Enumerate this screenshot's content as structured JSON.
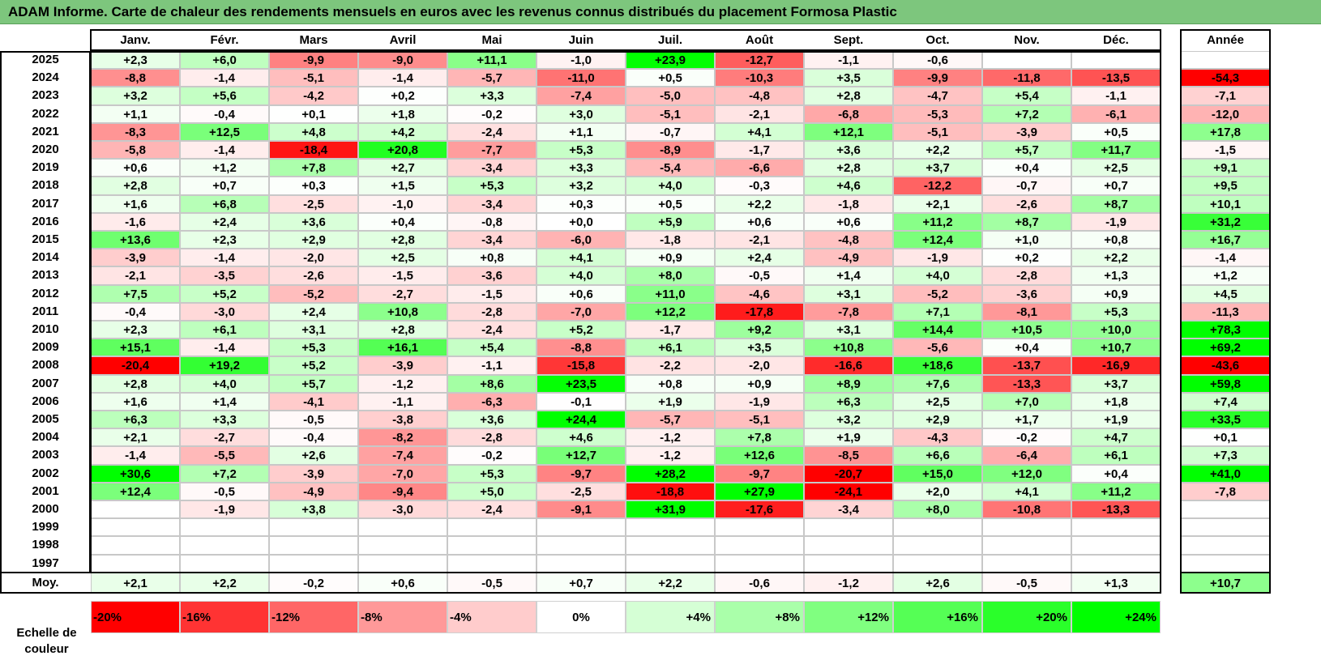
{
  "title": "ADAM Informe. Carte de chaleur des rendements mensuels en euros avec les revenus connus distribués du placement Formosa Plastic",
  "colors": {
    "title_bg": "#7dc67d",
    "negative_max": "#ff0000",
    "positive_max": "#00ff00",
    "neutral": "#ffffff"
  },
  "chart_data": {
    "type": "heatmap",
    "title": "ADAM Informe. Carte de chaleur des rendements mensuels en euros avec les revenus connus distribués du placement Formosa Plastic",
    "months": [
      "Janv.",
      "Févr.",
      "Mars",
      "Avril",
      "Mai",
      "Juin",
      "Juil.",
      "Août",
      "Sept.",
      "Oct.",
      "Nov.",
      "Déc."
    ],
    "year_header": "Année",
    "rows": [
      {
        "year": "2025",
        "months": [
          "+2,3",
          "+6,0",
          "-9,9",
          "-9,0",
          "+11,1",
          "-1,0",
          "+23,9",
          "-12,7",
          "-1,1",
          "-0,6",
          "",
          ""
        ],
        "total": ""
      },
      {
        "year": "2024",
        "months": [
          "-8,8",
          "-1,4",
          "-5,1",
          "-1,4",
          "-5,7",
          "-11,0",
          "+0,5",
          "-10,3",
          "+3,5",
          "-9,9",
          "-11,8",
          "-13,5"
        ],
        "total": "-54,3"
      },
      {
        "year": "2023",
        "months": [
          "+3,2",
          "+5,6",
          "-4,2",
          "+0,2",
          "+3,3",
          "-7,4",
          "-5,0",
          "-4,8",
          "+2,8",
          "-4,7",
          "+5,4",
          "-1,1"
        ],
        "total": "-7,1"
      },
      {
        "year": "2022",
        "months": [
          "+1,1",
          "-0,4",
          "+0,1",
          "+1,8",
          "-0,2",
          "+3,0",
          "-5,1",
          "-2,1",
          "-6,8",
          "-5,3",
          "+7,2",
          "-6,1"
        ],
        "total": "-12,0"
      },
      {
        "year": "2021",
        "months": [
          "-8,3",
          "+12,5",
          "+4,8",
          "+4,2",
          "-2,4",
          "+1,1",
          "-0,7",
          "+4,1",
          "+12,1",
          "-5,1",
          "-3,9",
          "+0,5"
        ],
        "total": "+17,8"
      },
      {
        "year": "2020",
        "months": [
          "-5,8",
          "-1,4",
          "-18,4",
          "+20,8",
          "-7,7",
          "+5,3",
          "-8,9",
          "-1,7",
          "+3,6",
          "+2,2",
          "+5,7",
          "+11,7"
        ],
        "total": "-1,5"
      },
      {
        "year": "2019",
        "months": [
          "+0,6",
          "+1,2",
          "+7,8",
          "+2,7",
          "-3,4",
          "+3,3",
          "-5,4",
          "-6,6",
          "+2,8",
          "+3,7",
          "+0,4",
          "+2,5"
        ],
        "total": "+9,1"
      },
      {
        "year": "2018",
        "months": [
          "+2,8",
          "+0,7",
          "+0,3",
          "+1,5",
          "+5,3",
          "+3,2",
          "+4,0",
          "-0,3",
          "+4,6",
          "-12,2",
          "-0,7",
          "+0,7"
        ],
        "total": "+9,5"
      },
      {
        "year": "2017",
        "months": [
          "+1,6",
          "+6,8",
          "-2,5",
          "-1,0",
          "-3,4",
          "+0,3",
          "+0,5",
          "+2,2",
          "-1,8",
          "+2,1",
          "-2,6",
          "+8,7"
        ],
        "total": "+10,1"
      },
      {
        "year": "2016",
        "months": [
          "-1,6",
          "+2,4",
          "+3,6",
          "+0,4",
          "-0,8",
          "+0,0",
          "+5,9",
          "+0,6",
          "+0,6",
          "+11,2",
          "+8,7",
          "-1,9"
        ],
        "total": "+31,2"
      },
      {
        "year": "2015",
        "months": [
          "+13,6",
          "+2,3",
          "+2,9",
          "+2,8",
          "-3,4",
          "-6,0",
          "-1,8",
          "-2,1",
          "-4,8",
          "+12,4",
          "+1,0",
          "+0,8"
        ],
        "total": "+16,7"
      },
      {
        "year": "2014",
        "months": [
          "-3,9",
          "-1,4",
          "-2,0",
          "+2,5",
          "+0,8",
          "+4,1",
          "+0,9",
          "+2,4",
          "-4,9",
          "-1,9",
          "+0,2",
          "+2,2"
        ],
        "total": "-1,4"
      },
      {
        "year": "2013",
        "months": [
          "-2,1",
          "-3,5",
          "-2,6",
          "-1,5",
          "-3,6",
          "+4,0",
          "+8,0",
          "-0,5",
          "+1,4",
          "+4,0",
          "-2,8",
          "+1,3"
        ],
        "total": "+1,2"
      },
      {
        "year": "2012",
        "months": [
          "+7,5",
          "+5,2",
          "-5,2",
          "-2,7",
          "-1,5",
          "+0,6",
          "+11,0",
          "-4,6",
          "+3,1",
          "-5,2",
          "-3,6",
          "+0,9"
        ],
        "total": "+4,5"
      },
      {
        "year": "2011",
        "months": [
          "-0,4",
          "-3,0",
          "+2,4",
          "+10,8",
          "-2,8",
          "-7,0",
          "+12,2",
          "-17,8",
          "-7,8",
          "+7,1",
          "-8,1",
          "+5,3"
        ],
        "total": "-11,3"
      },
      {
        "year": "2010",
        "months": [
          "+2,3",
          "+6,1",
          "+3,1",
          "+2,8",
          "-2,4",
          "+5,2",
          "-1,7",
          "+9,2",
          "+3,1",
          "+14,4",
          "+10,5",
          "+10,0"
        ],
        "total": "+78,3"
      },
      {
        "year": "2009",
        "months": [
          "+15,1",
          "-1,4",
          "+5,3",
          "+16,1",
          "+5,4",
          "-8,8",
          "+6,1",
          "+3,5",
          "+10,8",
          "-5,6",
          "+0,4",
          "+10,7"
        ],
        "total": "+69,2"
      },
      {
        "year": "2008",
        "months": [
          "-20,4",
          "+19,2",
          "+5,2",
          "-3,9",
          "-1,1",
          "-15,8",
          "-2,2",
          "-2,0",
          "-16,6",
          "+18,6",
          "-13,7",
          "-16,9"
        ],
        "total": "-43,6"
      },
      {
        "year": "2007",
        "months": [
          "+2,8",
          "+4,0",
          "+5,7",
          "-1,2",
          "+8,6",
          "+23,5",
          "+0,8",
          "+0,9",
          "+8,9",
          "+7,6",
          "-13,3",
          "+3,7"
        ],
        "total": "+59,8"
      },
      {
        "year": "2006",
        "months": [
          "+1,6",
          "+1,4",
          "-4,1",
          "-1,1",
          "-6,3",
          "-0,1",
          "+1,9",
          "-1,9",
          "+6,3",
          "+2,5",
          "+7,0",
          "+1,8"
        ],
        "total": "+7,4"
      },
      {
        "year": "2005",
        "months": [
          "+6,3",
          "+3,3",
          "-0,5",
          "-3,8",
          "+3,6",
          "+24,4",
          "-5,7",
          "-5,1",
          "+3,2",
          "+2,9",
          "+1,7",
          "+1,9"
        ],
        "total": "+33,5"
      },
      {
        "year": "2004",
        "months": [
          "+2,1",
          "-2,7",
          "-0,4",
          "-8,2",
          "-2,8",
          "+4,6",
          "-1,2",
          "+7,8",
          "+1,9",
          "-4,3",
          "-0,2",
          "+4,7"
        ],
        "total": "+0,1"
      },
      {
        "year": "2003",
        "months": [
          "-1,4",
          "-5,5",
          "+2,6",
          "-7,4",
          "-0,2",
          "+12,7",
          "-1,2",
          "+12,6",
          "-8,5",
          "+6,6",
          "-6,4",
          "+6,1"
        ],
        "total": "+7,3"
      },
      {
        "year": "2002",
        "months": [
          "+30,6",
          "+7,2",
          "-3,9",
          "-7,0",
          "+5,3",
          "-9,7",
          "+28,2",
          "-9,7",
          "-20,7",
          "+15,0",
          "+12,0",
          "+0,4"
        ],
        "total": "+41,0"
      },
      {
        "year": "2001",
        "months": [
          "+12,4",
          "-0,5",
          "-4,9",
          "-9,4",
          "+5,0",
          "-2,5",
          "-18,8",
          "+27,9",
          "-24,1",
          "+2,0",
          "+4,1",
          "+11,2"
        ],
        "total": "-7,8"
      },
      {
        "year": "2000",
        "months": [
          "",
          "-1,9",
          "+3,8",
          "-3,0",
          "-2,4",
          "-9,1",
          "+31,9",
          "-17,6",
          "-3,4",
          "+8,0",
          "-10,8",
          "-13,3"
        ],
        "total": ""
      },
      {
        "year": "1999",
        "months": [
          "",
          "",
          "",
          "",
          "",
          "",
          "",
          "",
          "",
          "",
          "",
          ""
        ],
        "total": ""
      },
      {
        "year": "1998",
        "months": [
          "",
          "",
          "",
          "",
          "",
          "",
          "",
          "",
          "",
          "",
          "",
          ""
        ],
        "total": ""
      },
      {
        "year": "1997",
        "months": [
          "",
          "",
          "",
          "",
          "",
          "",
          "",
          "",
          "",
          "",
          "",
          ""
        ],
        "total": ""
      }
    ],
    "average": {
      "label": "Moy.",
      "months": [
        "+2,1",
        "+2,2",
        "-0,2",
        "+0,6",
        "-0,5",
        "+0,7",
        "+2,2",
        "-0,6",
        "-1,2",
        "+2,6",
        "-0,5",
        "+1,3"
      ],
      "total": "+10,7"
    },
    "scale": {
      "label": "Echelle de couleur",
      "steps": [
        {
          "text": "-20%",
          "value": -20
        },
        {
          "text": "-16%",
          "value": -16
        },
        {
          "text": "-12%",
          "value": -12
        },
        {
          "text": "-8%",
          "value": -8
        },
        {
          "text": "-4%",
          "value": -4
        },
        {
          "text": "0%",
          "value": 0
        },
        {
          "text": "+4%",
          "value": 4
        },
        {
          "text": "+8%",
          "value": 8
        },
        {
          "text": "+12%",
          "value": 12
        },
        {
          "text": "+16%",
          "value": 16
        },
        {
          "text": "+20%",
          "value": 20
        },
        {
          "text": "+24%",
          "value": 24
        }
      ]
    }
  }
}
